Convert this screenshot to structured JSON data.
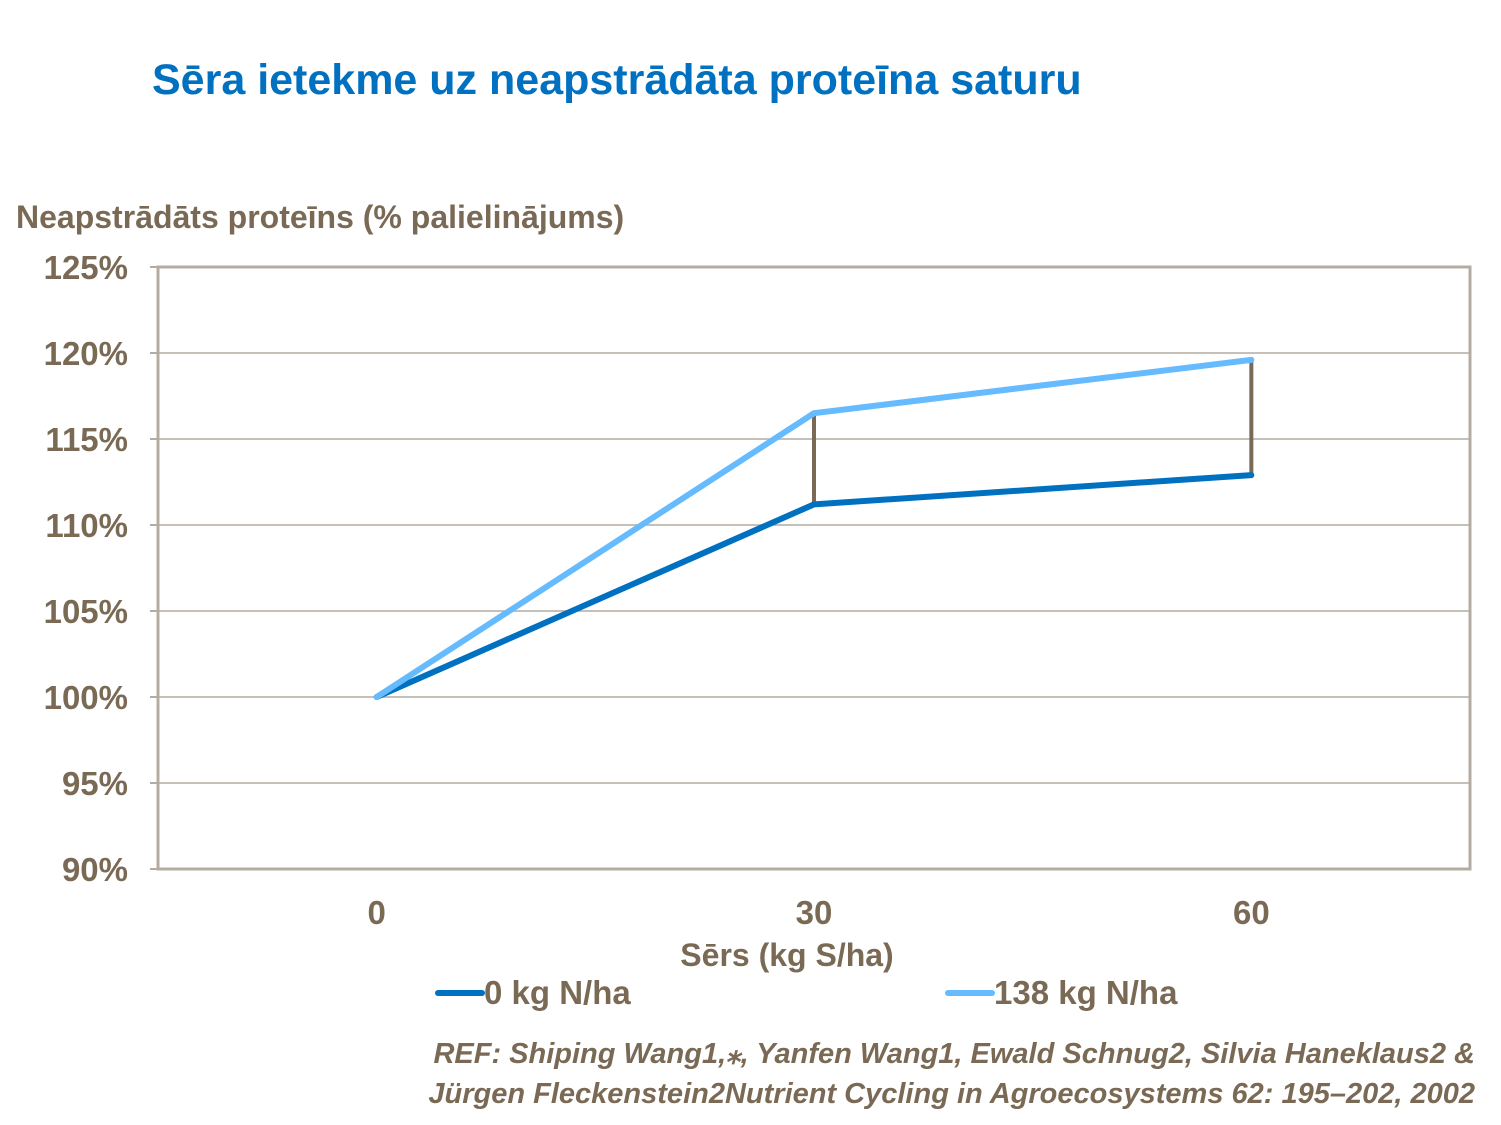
{
  "title": "Sēra ietekme uz neapstrādāta proteīna saturu",
  "reference": {
    "line1": "REF: Shiping Wang1,⁎, Yanfen Wang1, Ewald Schnug2, Silvia Haneklaus2 &",
    "line2": "Jürgen Fleckenstein2Nutrient Cycling in Agroecosystems 62: 195–202, 2002"
  },
  "chart_data": {
    "type": "line",
    "title": "Sēra ietekme uz neapstrādāta proteīna saturu",
    "xlabel": "Sērs (kg S/ha)",
    "ylabel": "Neapstrādāts proteīns (% palielinājums)",
    "categories": [
      "0",
      "30",
      "60"
    ],
    "ylim": [
      90,
      125
    ],
    "yticks": [
      "90%",
      "95%",
      "100%",
      "105%",
      "110%",
      "115%",
      "120%",
      "125%"
    ],
    "ytick_values": [
      90,
      95,
      100,
      105,
      110,
      115,
      120,
      125
    ],
    "grid": true,
    "legend_position": "bottom",
    "high_low_lines": true,
    "series": [
      {
        "name": "0 kg N/ha",
        "values": [
          100,
          111.2,
          112.9
        ],
        "color": "#0070C0"
      },
      {
        "name": "138 kg N/ha",
        "values": [
          100,
          116.5,
          119.6
        ],
        "color": "#66BBFF"
      }
    ],
    "colors": {
      "text": "#7A6A55",
      "grid": "#B4ACA2",
      "title": "#0070C0",
      "highlow": "#7A6A55"
    }
  }
}
